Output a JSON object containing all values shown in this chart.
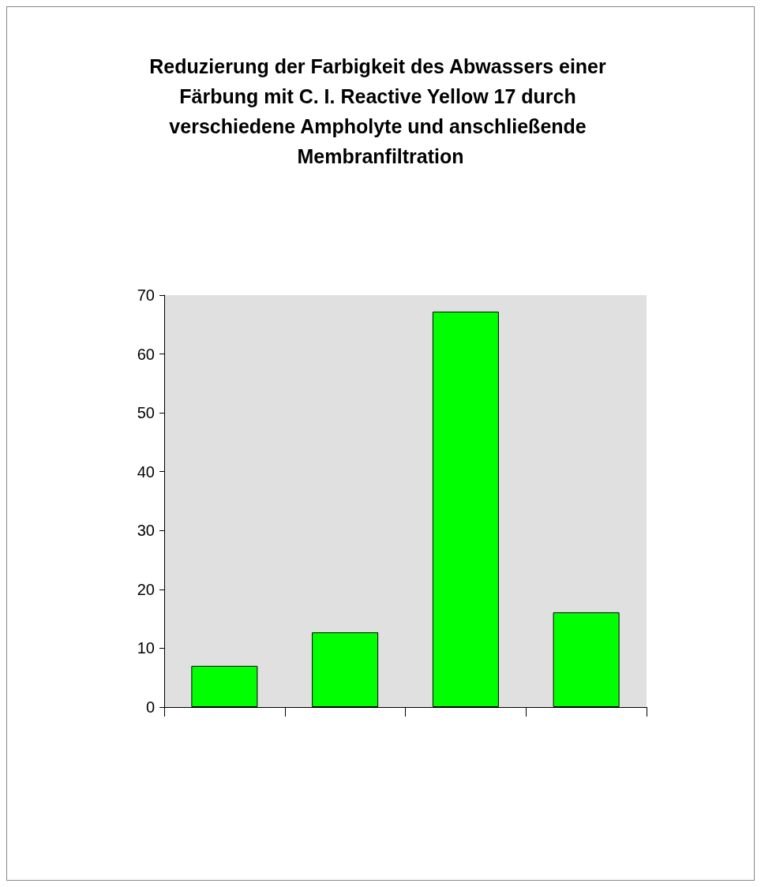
{
  "chart_data": {
    "type": "bar",
    "title": "Reduzierung der Farbigkeit des Abwassers einer Färbung mit C. I. Reactive Yellow 17 durch verschiedene Ampholyte und anschließende Membranfiltration",
    "categories": [
      null,
      null,
      null,
      null
    ],
    "values": [
      7,
      12.7,
      67.2,
      16.1
    ],
    "color": "#00ff00",
    "ylim": [
      0,
      70
    ],
    "yticks": [
      0,
      10,
      20,
      30,
      40,
      50,
      60,
      70
    ]
  }
}
